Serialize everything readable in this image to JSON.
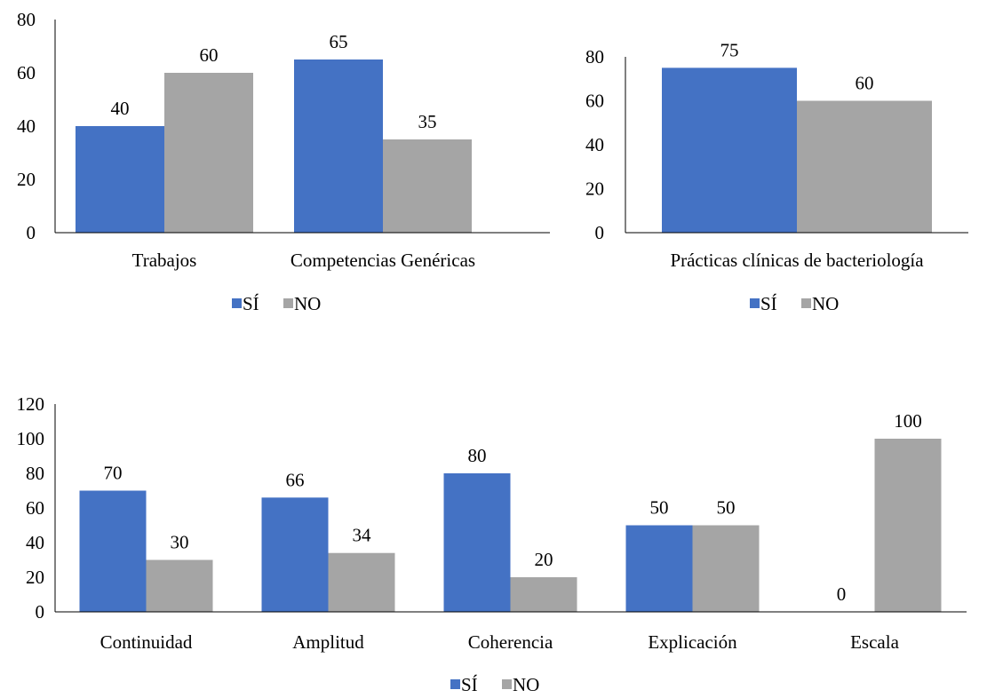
{
  "colors": {
    "si": "#4472C4",
    "no": "#A5A5A5",
    "axis": "#000000"
  },
  "chart_data": [
    {
      "type": "bar",
      "categories": [
        "Trabajos",
        "Competencias Genéricas"
      ],
      "series": [
        {
          "name": "SÍ",
          "values": [
            40,
            65
          ]
        },
        {
          "name": "NO",
          "values": [
            60,
            35
          ]
        }
      ],
      "ylim": [
        0,
        80
      ],
      "yticks": [
        "0",
        "20",
        "40",
        "60",
        "80"
      ],
      "legend": [
        "SÍ",
        "NO"
      ],
      "legend_position": "bottom",
      "grid": false
    },
    {
      "type": "bar",
      "categories": [
        "Prácticas clínicas de bacteriología"
      ],
      "series": [
        {
          "name": "SÍ",
          "values": [
            75
          ]
        },
        {
          "name": "NO",
          "values": [
            60
          ]
        }
      ],
      "ylim": [
        0,
        80
      ],
      "yticks": [
        "0",
        "20",
        "40",
        "60",
        "80"
      ],
      "legend": [
        "SÍ",
        "NO"
      ],
      "legend_position": "bottom",
      "grid": false
    },
    {
      "type": "bar",
      "categories": [
        "Continuidad",
        "Amplitud",
        "Coherencia",
        "Explicación",
        "Escala"
      ],
      "series": [
        {
          "name": "SÍ",
          "values": [
            70,
            66,
            80,
            50,
            0
          ]
        },
        {
          "name": "NO",
          "values": [
            30,
            34,
            20,
            50,
            100
          ]
        }
      ],
      "ylim": [
        0,
        120
      ],
      "yticks": [
        "0",
        "20",
        "40",
        "60",
        "80",
        "100",
        "120"
      ],
      "legend": [
        "SÍ",
        "NO"
      ],
      "legend_position": "bottom",
      "grid": false
    }
  ]
}
